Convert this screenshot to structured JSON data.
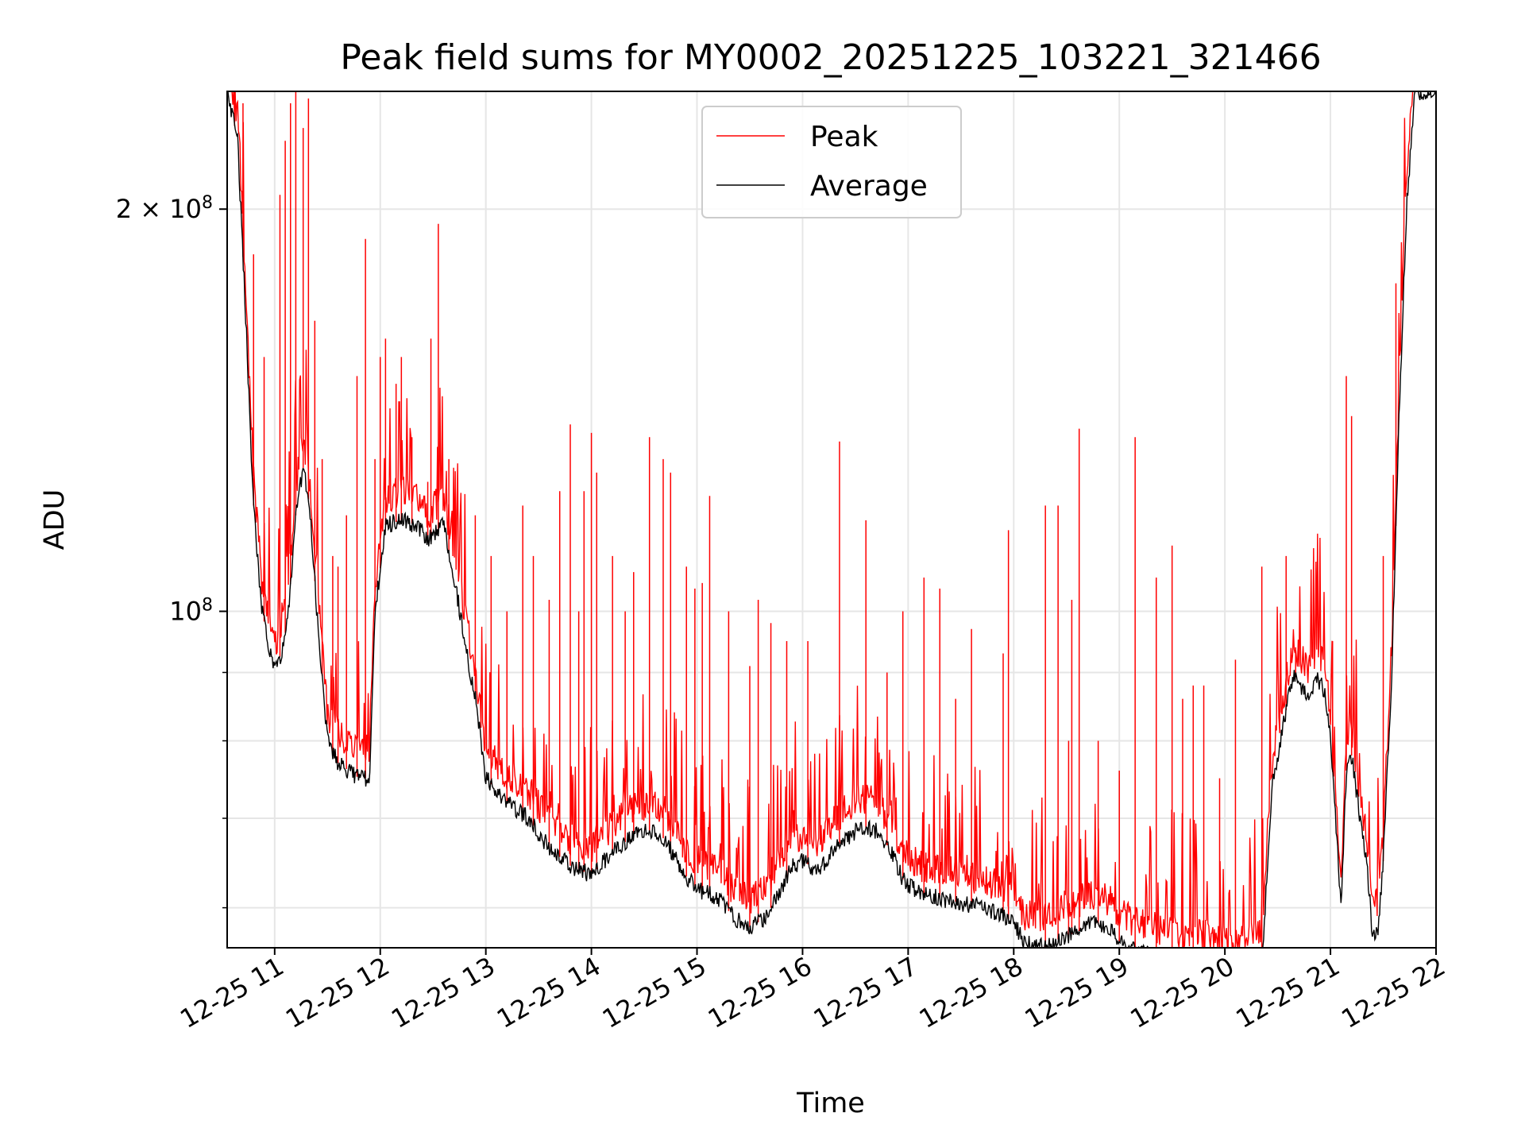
{
  "chart_data": {
    "type": "line",
    "title": "Peak field sums for MY0002_20251225_103221_321466",
    "xlabel": "Time",
    "ylabel": "ADU",
    "yscale": "log",
    "ylim": [
      56000000,
      245000000
    ],
    "xlim_hours": [
      10.55,
      22.0
    ],
    "grid": true,
    "legend_position": "top-center",
    "x_tick_values_hours": [
      11,
      12,
      13,
      14,
      15,
      16,
      17,
      18,
      19,
      20,
      21,
      22
    ],
    "x_tick_labels": [
      "12-25 11",
      "12-25 12",
      "12-25 13",
      "12-25 14",
      "12-25 15",
      "12-25 16",
      "12-25 17",
      "12-25 18",
      "12-25 19",
      "12-25 20",
      "12-25 21",
      "12-25 22"
    ],
    "y_major_ticks": [
      {
        "value": 100000000,
        "base": "10",
        "exp": "8",
        "mant": ""
      },
      {
        "value": 200000000,
        "base": "10",
        "exp": "8",
        "mant": "2 × "
      }
    ],
    "y_minor_grid": [
      60000000,
      70000000,
      80000000,
      90000000
    ],
    "series": [
      {
        "name": "Average",
        "color": "#000000",
        "x_hours": [
          10.55,
          10.65,
          10.72,
          10.8,
          10.88,
          10.95,
          11.0,
          11.08,
          11.13,
          11.2,
          11.27,
          11.33,
          11.4,
          11.5,
          11.6,
          11.7,
          11.8,
          11.9,
          11.95,
          12.05,
          12.2,
          12.35,
          12.45,
          12.6,
          12.7,
          12.8,
          12.9,
          13.0,
          13.2,
          13.4,
          13.6,
          13.8,
          14.0,
          14.2,
          14.4,
          14.55,
          14.7,
          14.85,
          15.0,
          15.2,
          15.35,
          15.5,
          15.65,
          15.8,
          15.9,
          16.0,
          16.15,
          16.35,
          16.55,
          16.7,
          16.85,
          16.95,
          17.1,
          17.3,
          17.5,
          17.7,
          17.85,
          18.0,
          18.1,
          18.3,
          18.45,
          18.6,
          18.75,
          18.9,
          19.0,
          19.2,
          19.4,
          19.6,
          19.8,
          20.0,
          20.2,
          20.35,
          20.45,
          20.55,
          20.65,
          20.72,
          20.8,
          20.88,
          20.95,
          21.0,
          21.05,
          21.1,
          21.15,
          21.2,
          21.28,
          21.35,
          21.4,
          21.45,
          21.5,
          21.58,
          21.65,
          21.72,
          21.8,
          21.88,
          21.95
        ],
        "values": [
          245000000,
          225000000,
          170000000,
          120000000,
          100000000,
          94000000,
          90000000,
          94000000,
          100000000,
          118000000,
          128000000,
          120000000,
          100000000,
          80000000,
          77000000,
          76000000,
          75000000,
          75000000,
          100000000,
          116000000,
          117000000,
          116000000,
          113000000,
          116000000,
          106000000,
          95000000,
          86000000,
          75000000,
          72000000,
          70000000,
          66500000,
          64500000,
          63500000,
          66000000,
          68000000,
          68500000,
          67500000,
          64000000,
          62000000,
          61000000,
          59000000,
          58000000,
          59000000,
          62000000,
          64500000,
          65000000,
          64000000,
          67000000,
          69000000,
          68500000,
          66000000,
          63000000,
          61500000,
          61000000,
          60500000,
          60000000,
          59500000,
          58500000,
          56500000,
          56000000,
          57000000,
          57500000,
          58500000,
          58000000,
          56500000,
          55500000,
          55000000,
          54500000,
          54500000,
          54000000,
          54000000,
          54500000,
          74000000,
          82000000,
          90000000,
          88000000,
          86000000,
          89000000,
          87000000,
          80000000,
          70000000,
          60000000,
          76000000,
          78000000,
          70000000,
          64000000,
          57000000,
          58000000,
          65000000,
          90000000,
          140000000,
          200000000,
          245000000,
          245000000,
          245000000
        ]
      },
      {
        "name": "Peak",
        "color": "#ff0000",
        "spikes": [
          {
            "x": 10.62,
            "v": 245000000
          },
          {
            "x": 10.7,
            "v": 240000000
          },
          {
            "x": 10.8,
            "v": 185000000
          },
          {
            "x": 10.9,
            "v": 155000000
          },
          {
            "x": 11.05,
            "v": 205000000
          },
          {
            "x": 11.1,
            "v": 225000000
          },
          {
            "x": 11.15,
            "v": 240000000
          },
          {
            "x": 11.2,
            "v": 245000000
          },
          {
            "x": 11.27,
            "v": 230000000
          },
          {
            "x": 11.32,
            "v": 242000000
          },
          {
            "x": 11.38,
            "v": 165000000
          },
          {
            "x": 11.45,
            "v": 130000000
          },
          {
            "x": 11.55,
            "v": 110000000
          },
          {
            "x": 11.6,
            "v": 108000000
          },
          {
            "x": 11.68,
            "v": 118000000
          },
          {
            "x": 11.78,
            "v": 150000000
          },
          {
            "x": 11.86,
            "v": 190000000
          },
          {
            "x": 11.95,
            "v": 130000000
          },
          {
            "x": 12.0,
            "v": 155000000
          },
          {
            "x": 12.05,
            "v": 160000000
          },
          {
            "x": 12.15,
            "v": 148000000
          },
          {
            "x": 12.2,
            "v": 155000000
          },
          {
            "x": 12.3,
            "v": 135000000
          },
          {
            "x": 12.45,
            "v": 125000000
          },
          {
            "x": 12.48,
            "v": 160000000
          },
          {
            "x": 12.55,
            "v": 195000000
          },
          {
            "x": 12.65,
            "v": 130000000
          },
          {
            "x": 12.9,
            "v": 118000000
          },
          {
            "x": 13.05,
            "v": 110000000
          },
          {
            "x": 13.2,
            "v": 100000000
          },
          {
            "x": 13.35,
            "v": 120000000
          },
          {
            "x": 13.45,
            "v": 110000000
          },
          {
            "x": 13.6,
            "v": 102000000
          },
          {
            "x": 13.7,
            "v": 123000000
          },
          {
            "x": 13.8,
            "v": 138000000
          },
          {
            "x": 13.88,
            "v": 100000000
          },
          {
            "x": 13.93,
            "v": 123000000
          },
          {
            "x": 14.0,
            "v": 136000000
          },
          {
            "x": 14.05,
            "v": 127000000
          },
          {
            "x": 14.2,
            "v": 110000000
          },
          {
            "x": 14.32,
            "v": 100000000
          },
          {
            "x": 14.4,
            "v": 107000000
          },
          {
            "x": 14.55,
            "v": 135000000
          },
          {
            "x": 14.68,
            "v": 130000000
          },
          {
            "x": 14.75,
            "v": 127000000
          },
          {
            "x": 14.9,
            "v": 108000000
          },
          {
            "x": 14.98,
            "v": 104000000
          },
          {
            "x": 15.05,
            "v": 105000000
          },
          {
            "x": 15.12,
            "v": 122000000
          },
          {
            "x": 15.3,
            "v": 100000000
          },
          {
            "x": 15.5,
            "v": 91000000
          },
          {
            "x": 15.58,
            "v": 102000000
          },
          {
            "x": 15.7,
            "v": 98000000
          },
          {
            "x": 15.85,
            "v": 95000000
          },
          {
            "x": 16.05,
            "v": 95000000
          },
          {
            "x": 16.35,
            "v": 134000000
          },
          {
            "x": 16.6,
            "v": 117000000
          },
          {
            "x": 16.8,
            "v": 90000000
          },
          {
            "x": 16.95,
            "v": 100000000
          },
          {
            "x": 17.15,
            "v": 106000000
          },
          {
            "x": 17.3,
            "v": 104000000
          },
          {
            "x": 17.45,
            "v": 86000000
          },
          {
            "x": 17.6,
            "v": 97000000
          },
          {
            "x": 17.9,
            "v": 93000000
          },
          {
            "x": 17.95,
            "v": 115000000
          },
          {
            "x": 18.3,
            "v": 120000000
          },
          {
            "x": 18.42,
            "v": 120000000
          },
          {
            "x": 18.52,
            "v": 80000000
          },
          {
            "x": 18.55,
            "v": 102000000
          },
          {
            "x": 18.62,
            "v": 137000000
          },
          {
            "x": 18.8,
            "v": 80000000
          },
          {
            "x": 19.0,
            "v": 76000000
          },
          {
            "x": 19.15,
            "v": 135000000
          },
          {
            "x": 19.35,
            "v": 106000000
          },
          {
            "x": 19.5,
            "v": 112000000
          },
          {
            "x": 19.6,
            "v": 86000000
          },
          {
            "x": 19.7,
            "v": 88000000
          },
          {
            "x": 19.8,
            "v": 88000000
          },
          {
            "x": 19.95,
            "v": 75000000
          },
          {
            "x": 20.1,
            "v": 92000000
          },
          {
            "x": 20.35,
            "v": 108000000
          },
          {
            "x": 20.58,
            "v": 110000000
          },
          {
            "x": 20.67,
            "v": 94000000
          },
          {
            "x": 21.02,
            "v": 95000000
          },
          {
            "x": 21.15,
            "v": 150000000
          },
          {
            "x": 21.2,
            "v": 140000000
          },
          {
            "x": 21.5,
            "v": 110000000
          },
          {
            "x": 21.62,
            "v": 176000000
          }
        ]
      }
    ]
  }
}
